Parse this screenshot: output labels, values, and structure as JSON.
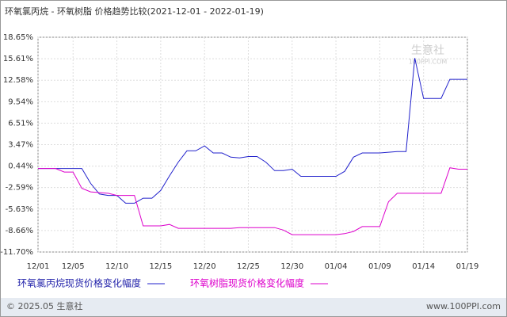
{
  "chart_data": {
    "type": "line",
    "title": "环氧氯丙烷 - 环氧树脂 价格趋势比较(2021-12-01 - 2022-01-19)",
    "categories": [
      "12/01",
      null,
      null,
      null,
      "12/05",
      null,
      null,
      null,
      null,
      "12/10",
      null,
      null,
      null,
      null,
      "12/15",
      null,
      null,
      null,
      null,
      "12/20",
      null,
      null,
      null,
      null,
      "12/25",
      null,
      null,
      null,
      null,
      "12/30",
      null,
      null,
      null,
      null,
      "01/04",
      null,
      null,
      null,
      null,
      "01/09",
      null,
      null,
      null,
      null,
      "01/14",
      null,
      null,
      null,
      null,
      "01/19"
    ],
    "series": [
      {
        "name": "环氧氯丙烷现货价格变化幅度",
        "color": "#2222cc",
        "values": [
          0.1,
          0.1,
          0.1,
          0.1,
          0.1,
          0.1,
          -2.0,
          -3.5,
          -3.7,
          -3.7,
          -4.8,
          -4.8,
          -4.1,
          -4.1,
          -3.0,
          -0.95,
          1.0,
          2.6,
          2.6,
          3.3,
          2.3,
          2.3,
          1.7,
          1.6,
          1.8,
          1.8,
          1.0,
          -0.2,
          -0.2,
          0.0,
          -1.0,
          -1.0,
          -1.0,
          -1.0,
          -1.0,
          -0.3,
          1.7,
          2.3,
          2.3,
          2.3,
          2.4,
          2.5,
          2.5,
          15.7,
          10.0,
          10.0,
          10.0,
          12.7,
          12.7,
          12.7
        ]
      },
      {
        "name": "环氧树脂现货价格变化幅度",
        "color": "#dd00cc",
        "values": [
          0.1,
          0.1,
          0.1,
          -0.4,
          -0.4,
          -2.7,
          -3.2,
          -3.3,
          -3.4,
          -3.7,
          -3.7,
          -3.7,
          -8.0,
          -8.0,
          -8.0,
          -7.8,
          -8.35,
          -8.35,
          -8.35,
          -8.35,
          -8.35,
          -8.35,
          -8.35,
          -8.25,
          -8.25,
          -8.25,
          -8.25,
          -8.25,
          -8.6,
          -9.25,
          -9.25,
          -9.25,
          -9.25,
          -9.25,
          -9.25,
          -9.1,
          -8.8,
          -8.1,
          -8.1,
          -8.1,
          -4.6,
          -3.4,
          -3.4,
          -3.4,
          -3.4,
          -3.4,
          -3.4,
          0.2,
          0.0,
          0.0
        ]
      }
    ],
    "ylim": [
      -11.7,
      18.65
    ],
    "yticks": [
      {
        "value": 18.65,
        "label": "18.65%"
      },
      {
        "value": 15.61,
        "label": "15.61%"
      },
      {
        "value": 12.58,
        "label": "12.58%"
      },
      {
        "value": 9.54,
        "label": "9.54%"
      },
      {
        "value": 6.51,
        "label": "6.51%"
      },
      {
        "value": 3.47,
        "label": "3.47%"
      },
      {
        "value": 0.44,
        "label": "0.44%"
      },
      {
        "value": -2.59,
        "label": "-2.59%"
      },
      {
        "value": -5.63,
        "label": "-5.63%"
      },
      {
        "value": -8.66,
        "label": "-8.66%"
      },
      {
        "value": -11.7,
        "label": "-11.70%"
      }
    ],
    "grid": true,
    "watermark": "生意社",
    "watermark_sub": "100PPI.COM",
    "footer_left": "© 2025.05 生意社",
    "footer_right": "www.100PPI.com"
  }
}
